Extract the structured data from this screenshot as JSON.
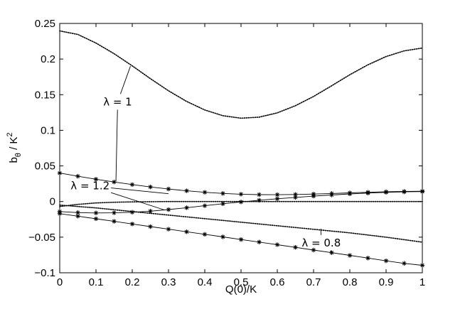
{
  "chart_data": {
    "type": "line",
    "xlabel": "Q(0)/K",
    "ylabel_main": "b",
    "ylabel_sub": "θ",
    "ylabel_tail": " / K",
    "ylabel_sup": "2",
    "xlim": [
      0,
      1
    ],
    "ylim": [
      -0.1,
      0.25
    ],
    "xticks": [
      0,
      0.1,
      0.2,
      0.3,
      0.4,
      0.5,
      0.6,
      0.7,
      0.8,
      0.9,
      1
    ],
    "xtick_labels": [
      "0",
      "0.1",
      "0.2",
      "0.3",
      "0.4",
      "0.5",
      "0.6",
      "0.7",
      "0.8",
      "0.9",
      "1"
    ],
    "yticks": [
      -0.1,
      -0.05,
      0,
      0.05,
      0.1,
      0.15,
      0.2,
      0.25
    ],
    "ytick_labels": [
      "−0.1",
      "−0.05",
      "0",
      "0.05",
      "0.1",
      "0.15",
      "0.2",
      "0.25"
    ],
    "grid": false,
    "legend": "none",
    "series": [
      {
        "style": "dotted",
        "x": [
          0,
          0.05,
          0.1,
          0.15,
          0.2,
          0.25,
          0.3,
          0.35,
          0.4,
          0.45,
          0.5,
          0.55,
          0.6,
          0.65,
          0.7,
          0.75,
          0.8,
          0.85,
          0.9,
          0.95,
          1
        ],
        "y": [
          0.2395,
          0.2345,
          0.2225,
          0.2075,
          0.1905,
          0.1725,
          0.1555,
          0.1405,
          0.1285,
          0.1205,
          0.117,
          0.1185,
          0.1245,
          0.1345,
          0.1475,
          0.1625,
          0.178,
          0.192,
          0.2035,
          0.2115,
          0.2155
        ]
      },
      {
        "style": "dotted",
        "x": [
          0,
          0.05,
          0.1,
          0.15,
          0.2,
          0.3,
          0.4,
          0.5,
          0.6,
          0.7,
          0.8,
          0.9,
          1
        ],
        "y": [
          -0.007,
          -0.004,
          -0.002,
          -0.001,
          -0.0005,
          0,
          0,
          0,
          0,
          0,
          0,
          0,
          0
        ]
      },
      {
        "style": "dotted",
        "x": [
          0,
          0.1,
          0.2,
          0.3,
          0.4,
          0.5,
          0.6,
          0.7,
          0.8,
          0.9,
          1
        ],
        "y": [
          -0.005,
          -0.009,
          -0.014,
          -0.019,
          -0.024,
          -0.029,
          -0.034,
          -0.039,
          -0.044,
          -0.05,
          -0.057
        ]
      },
      {
        "style": "solid-star",
        "x": [
          0,
          0.05,
          0.1,
          0.15,
          0.2,
          0.25,
          0.3,
          0.35,
          0.4,
          0.45,
          0.5,
          0.55,
          0.6,
          0.65,
          0.7,
          0.75,
          0.8,
          0.85,
          0.9,
          0.95,
          1
        ],
        "y": [
          0.04,
          0.0355,
          0.0313,
          0.0274,
          0.0238,
          0.0205,
          0.0176,
          0.0151,
          0.013,
          0.0114,
          0.0103,
          0.0097,
          0.0096,
          0.0099,
          0.0105,
          0.0113,
          0.0122,
          0.013,
          0.0137,
          0.0142,
          0.0145
        ]
      },
      {
        "style": "solid-star",
        "x": [
          0,
          0.05,
          0.1,
          0.15,
          0.2,
          0.25,
          0.3,
          0.35,
          0.4,
          0.45,
          0.5,
          0.55,
          0.6,
          0.65,
          0.7,
          0.75,
          0.8,
          0.85,
          0.9,
          0.95,
          1
        ],
        "y": [
          -0.014,
          -0.0155,
          -0.016,
          -0.0158,
          -0.015,
          -0.0135,
          -0.0113,
          -0.0087,
          -0.0059,
          -0.0031,
          -0.0006,
          0.0018,
          0.0039,
          0.0058,
          0.0076,
          0.0092,
          0.0107,
          0.0119,
          0.0129,
          0.0136,
          0.014
        ]
      },
      {
        "style": "solid-star",
        "x": [
          0,
          0.05,
          0.1,
          0.15,
          0.2,
          0.25,
          0.3,
          0.35,
          0.4,
          0.45,
          0.5,
          0.55,
          0.6,
          0.65,
          0.7,
          0.75,
          0.8,
          0.85,
          0.9,
          0.95,
          1
        ],
        "y": [
          -0.017,
          -0.0205,
          -0.0242,
          -0.0278,
          -0.0315,
          -0.0352,
          -0.0388,
          -0.0425,
          -0.046,
          -0.0496,
          -0.0533,
          -0.0569,
          -0.0606,
          -0.0643,
          -0.0681,
          -0.0718,
          -0.0756,
          -0.0794,
          -0.0832,
          -0.0868,
          -0.0895
        ]
      }
    ],
    "annotations": [
      {
        "text": "λ = 1",
        "x": 0.12,
        "y": 0.135,
        "ha": "start",
        "pointers": [
          [
            0.195,
            0.19
          ],
          [
            0.155,
            0.0285
          ]
        ]
      },
      {
        "text": "λ = 1.2",
        "x": 0.03,
        "y": 0.017,
        "ha": "start",
        "pointers": [
          [
            0.3,
            0.011
          ],
          [
            0.29,
            -0.012
          ]
        ]
      },
      {
        "text": "λ = 0.8",
        "x": 0.775,
        "y": -0.063,
        "ha": "end",
        "pointers": [
          [
            0.72,
            -0.038
          ],
          [
            0.75,
            -0.0705
          ]
        ]
      }
    ]
  }
}
